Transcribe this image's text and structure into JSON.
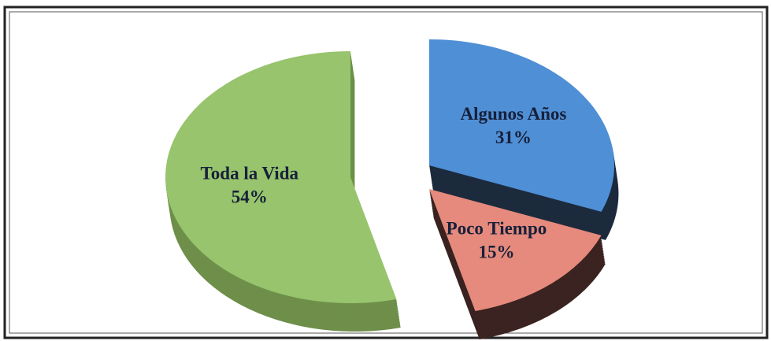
{
  "chart_data": {
    "type": "pie",
    "categories": [
      "Algunos Años",
      "Poco Tiempo",
      "Toda la Vida"
    ],
    "values": [
      31,
      15,
      54
    ],
    "value_labels": [
      "31%",
      "15%",
      "54%"
    ],
    "colors": [
      "#4f8fd6",
      "#e58a7c",
      "#97c46c"
    ],
    "side_colors": [
      "#1c2a3d",
      "#3a2320",
      "#6e8f4a"
    ]
  }
}
